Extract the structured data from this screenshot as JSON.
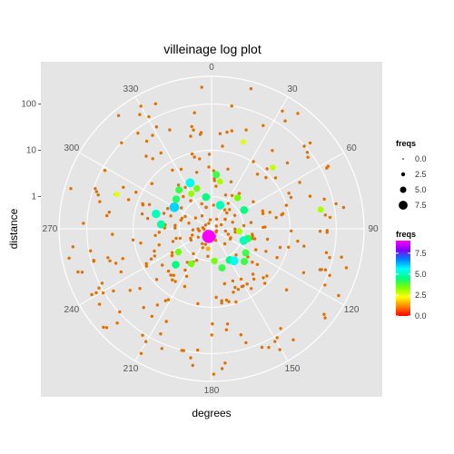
{
  "chart_data": {
    "type": "scatter",
    "coordinate_system": "polar",
    "title": "villeinage log plot",
    "xlabel": "degrees",
    "ylabel": "distance",
    "radial_scale": "log10",
    "theta_ticks": [
      0,
      30,
      60,
      90,
      120,
      150,
      180,
      210,
      240,
      270,
      300,
      330
    ],
    "r_ticks": [
      {
        "value": 1,
        "label": "1"
      },
      {
        "value": 10,
        "label": "10"
      },
      {
        "value": 100,
        "label": "100"
      }
    ],
    "background": "#e5e5e5",
    "grid": true,
    "legend_position": "right",
    "legends": {
      "size": {
        "title": "freqs",
        "labels": [
          "0.0",
          "2.5",
          "5.0",
          "7.5"
        ],
        "values": [
          0,
          2.5,
          5,
          7.5
        ]
      },
      "color": {
        "title": "freqs",
        "labels": [
          "0.0",
          "2.5",
          "5.0",
          "7.5"
        ],
        "values": [
          0,
          2.5,
          5,
          7.5
        ],
        "gradient": [
          "#ff0000",
          "#ff8000",
          "#ffff00",
          "#80ff00",
          "#00ff80",
          "#00ffff",
          "#0080ff",
          "#8000ff",
          "#ff00ff"
        ]
      }
    },
    "points": [
      {
        "theta": 200,
        "r": 0.3,
        "freq": 9.0
      },
      {
        "theta": 190,
        "r": 0.55,
        "freq": 1.5
      },
      {
        "theta": 150,
        "r": 1.2,
        "freq": 4.5
      },
      {
        "theta": 145,
        "r": 1.4,
        "freq": 5.5
      },
      {
        "theta": 125,
        "r": 1.6,
        "freq": 4.0
      },
      {
        "theta": 110,
        "r": 1.1,
        "freq": 5.0
      },
      {
        "theta": 105,
        "r": 1.3,
        "freq": 4.2
      },
      {
        "theta": 95,
        "r": 0.8,
        "freq": 3.0
      },
      {
        "theta": 60,
        "r": 1.3,
        "freq": 4.5
      },
      {
        "theta": 40,
        "r": 1.5,
        "freq": 3.5
      },
      {
        "theta": 20,
        "r": 0.7,
        "freq": 5.0
      },
      {
        "theta": 10,
        "r": 2.2,
        "freq": 3.0
      },
      {
        "theta": 350,
        "r": 1.0,
        "freq": 4.5
      },
      {
        "theta": 335,
        "r": 2.5,
        "freq": 5.5
      },
      {
        "theta": 320,
        "r": 2.5,
        "freq": 4.0
      },
      {
        "theta": 300,
        "r": 1.7,
        "freq": 6.0
      },
      {
        "theta": 285,
        "r": 3.5,
        "freq": 5.0
      },
      {
        "theta": 275,
        "r": 2.5,
        "freq": 4.8
      },
      {
        "theta": 310,
        "r": 2.0,
        "freq": 4.2
      },
      {
        "theta": 330,
        "r": 1.5,
        "freq": 3.2
      },
      {
        "theta": 340,
        "r": 1.7,
        "freq": 3.5
      },
      {
        "theta": 5,
        "r": 3.0,
        "freq": 4.0
      },
      {
        "theta": 20,
        "r": 20.0,
        "freq": 2.5
      },
      {
        "theta": 45,
        "r": 15.0,
        "freq": 2.8
      },
      {
        "theta": 80,
        "r": 50.0,
        "freq": 3.0
      },
      {
        "theta": 290,
        "r": 30.0,
        "freq": 2.5
      },
      {
        "theta": 210,
        "r": 1.5,
        "freq": 3.5
      },
      {
        "theta": 225,
        "r": 2.5,
        "freq": 4.5
      },
      {
        "theta": 235,
        "r": 1.5,
        "freq": 3.5
      },
      {
        "theta": 165,
        "r": 1.5,
        "freq": 4.0
      },
      {
        "theta": 175,
        "r": 1.0,
        "freq": 3.5
      },
      {
        "theta": 135,
        "r": 2.0,
        "freq": 4.0
      },
      {
        "theta": 180,
        "r": 0.3,
        "freq": 2.5
      }
    ],
    "background_points": {
      "count": 320,
      "freq": 0.5,
      "theta_range": [
        0,
        360
      ],
      "r_range": [
        0.2,
        400
      ],
      "note_color": "orange"
    }
  }
}
